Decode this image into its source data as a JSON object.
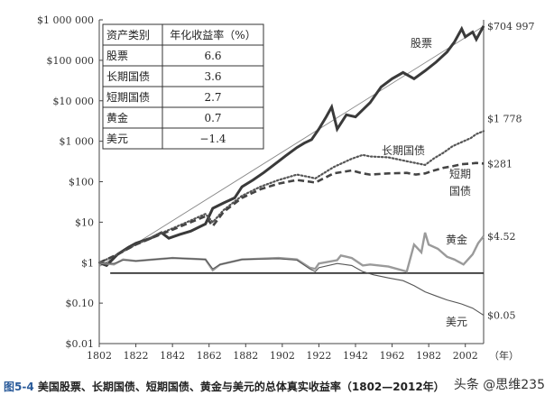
{
  "chart_data": {
    "type": "line",
    "y_scale": "log",
    "ylim": [
      0.01,
      1000000
    ],
    "xlim": [
      1802,
      2012
    ],
    "y_ticks": [
      {
        "v": 1000000,
        "label": "$1 000 000"
      },
      {
        "v": 100000,
        "label": "$100 000"
      },
      {
        "v": 10000,
        "label": "$10 000"
      },
      {
        "v": 1000,
        "label": "$1 000"
      },
      {
        "v": 100,
        "label": "$100"
      },
      {
        "v": 10,
        "label": "$10"
      },
      {
        "v": 1,
        "label": "$1"
      },
      {
        "v": 0.1,
        "label": "$0.10"
      },
      {
        "v": 0.01,
        "label": "$0.01"
      }
    ],
    "x_ticks": [
      1802,
      1822,
      1842,
      1862,
      1882,
      1902,
      1922,
      1942,
      1962,
      1982,
      2002
    ],
    "x_unit": "（年）",
    "grid": false,
    "series": [
      {
        "name": "股票",
        "end_label": "$704 997",
        "style": "thick-solid",
        "points": [
          [
            1802,
            1
          ],
          [
            1806,
            0.85
          ],
          [
            1812,
            1.6
          ],
          [
            1818,
            2.4
          ],
          [
            1822,
            3
          ],
          [
            1830,
            4
          ],
          [
            1836,
            5.5
          ],
          [
            1840,
            4
          ],
          [
            1846,
            5
          ],
          [
            1852,
            6
          ],
          [
            1860,
            9
          ],
          [
            1864,
            22
          ],
          [
            1870,
            30
          ],
          [
            1876,
            40
          ],
          [
            1880,
            75
          ],
          [
            1886,
            110
          ],
          [
            1892,
            170
          ],
          [
            1900,
            320
          ],
          [
            1904,
            440
          ],
          [
            1910,
            700
          ],
          [
            1914,
            900
          ],
          [
            1918,
            1100
          ],
          [
            1922,
            2000
          ],
          [
            1926,
            4000
          ],
          [
            1929,
            7000
          ],
          [
            1932,
            2000
          ],
          [
            1937,
            4500
          ],
          [
            1942,
            4000
          ],
          [
            1950,
            9000
          ],
          [
            1956,
            22000
          ],
          [
            1962,
            35000
          ],
          [
            1968,
            50000
          ],
          [
            1974,
            35000
          ],
          [
            1980,
            55000
          ],
          [
            1986,
            90000
          ],
          [
            1992,
            160000
          ],
          [
            1996,
            280000
          ],
          [
            2000,
            600000
          ],
          [
            2002,
            380000
          ],
          [
            2006,
            500000
          ],
          [
            2008,
            330000
          ],
          [
            2012,
            704997
          ]
        ]
      },
      {
        "name": "长期国债",
        "end_label": "$1 778",
        "style": "dotted",
        "points": [
          [
            1802,
            1
          ],
          [
            1812,
            1.6
          ],
          [
            1822,
            2.8
          ],
          [
            1832,
            4.5
          ],
          [
            1842,
            7
          ],
          [
            1852,
            11
          ],
          [
            1860,
            16
          ],
          [
            1864,
            10
          ],
          [
            1870,
            20
          ],
          [
            1880,
            45
          ],
          [
            1890,
            75
          ],
          [
            1900,
            110
          ],
          [
            1910,
            150
          ],
          [
            1917,
            130
          ],
          [
            1920,
            120
          ],
          [
            1930,
            230
          ],
          [
            1940,
            370
          ],
          [
            1946,
            460
          ],
          [
            1950,
            420
          ],
          [
            1960,
            400
          ],
          [
            1970,
            320
          ],
          [
            1980,
            260
          ],
          [
            1985,
            380
          ],
          [
            1990,
            520
          ],
          [
            1995,
            750
          ],
          [
            2000,
            950
          ],
          [
            2005,
            1200
          ],
          [
            2008,
            1500
          ],
          [
            2012,
            1778
          ]
        ]
      },
      {
        "name": "短期国债",
        "end_label": "$281",
        "style": "dashed",
        "points": [
          [
            1802,
            1
          ],
          [
            1812,
            1.6
          ],
          [
            1822,
            2.8
          ],
          [
            1832,
            4.3
          ],
          [
            1842,
            6.5
          ],
          [
            1852,
            10
          ],
          [
            1860,
            14
          ],
          [
            1864,
            8
          ],
          [
            1870,
            18
          ],
          [
            1880,
            40
          ],
          [
            1890,
            65
          ],
          [
            1900,
            90
          ],
          [
            1910,
            110
          ],
          [
            1917,
            100
          ],
          [
            1920,
            95
          ],
          [
            1930,
            160
          ],
          [
            1940,
            190
          ],
          [
            1946,
            160
          ],
          [
            1950,
            150
          ],
          [
            1960,
            160
          ],
          [
            1970,
            165
          ],
          [
            1975,
            150
          ],
          [
            1980,
            160
          ],
          [
            1985,
            190
          ],
          [
            1990,
            220
          ],
          [
            1995,
            240
          ],
          [
            2000,
            270
          ],
          [
            2005,
            280
          ],
          [
            2008,
            290
          ],
          [
            2012,
            281
          ]
        ]
      },
      {
        "name": "黄金",
        "end_label": "$4.52",
        "style": "gray-solid",
        "points": [
          [
            1802,
            1
          ],
          [
            1810,
            0.9
          ],
          [
            1815,
            1.2
          ],
          [
            1822,
            1.1
          ],
          [
            1832,
            1.2
          ],
          [
            1842,
            1.3
          ],
          [
            1852,
            1.25
          ],
          [
            1860,
            1.2
          ],
          [
            1864,
            0.65
          ],
          [
            1868,
            0.9
          ],
          [
            1880,
            1.2
          ],
          [
            1900,
            1.3
          ],
          [
            1910,
            1.2
          ],
          [
            1917,
            0.75
          ],
          [
            1920,
            0.7
          ],
          [
            1922,
            0.95
          ],
          [
            1932,
            1.15
          ],
          [
            1934,
            1.5
          ],
          [
            1940,
            1.3
          ],
          [
            1946,
            0.85
          ],
          [
            1950,
            0.9
          ],
          [
            1960,
            0.8
          ],
          [
            1970,
            0.6
          ],
          [
            1974,
            2.8
          ],
          [
            1978,
            1.8
          ],
          [
            1980,
            5.5
          ],
          [
            1982,
            2.8
          ],
          [
            1987,
            2.2
          ],
          [
            1992,
            1.4
          ],
          [
            1996,
            1.2
          ],
          [
            2001,
            0.9
          ],
          [
            2006,
            1.6
          ],
          [
            2009,
            3
          ],
          [
            2012,
            4.52
          ]
        ]
      },
      {
        "name": "美元",
        "end_label": "$0.05",
        "style": "thin-solid",
        "points": [
          [
            1802,
            1
          ],
          [
            1810,
            0.95
          ],
          [
            1815,
            1.15
          ],
          [
            1822,
            1.1
          ],
          [
            1832,
            1.2
          ],
          [
            1842,
            1.3
          ],
          [
            1852,
            1.25
          ],
          [
            1860,
            1.2
          ],
          [
            1864,
            0.7
          ],
          [
            1868,
            0.9
          ],
          [
            1880,
            1.2
          ],
          [
            1900,
            1.25
          ],
          [
            1910,
            1.15
          ],
          [
            1917,
            0.7
          ],
          [
            1920,
            0.6
          ],
          [
            1922,
            0.75
          ],
          [
            1932,
            0.95
          ],
          [
            1940,
            0.85
          ],
          [
            1946,
            0.6
          ],
          [
            1952,
            0.5
          ],
          [
            1960,
            0.42
          ],
          [
            1968,
            0.36
          ],
          [
            1974,
            0.27
          ],
          [
            1980,
            0.19
          ],
          [
            1986,
            0.15
          ],
          [
            1992,
            0.12
          ],
          [
            2000,
            0.095
          ],
          [
            2006,
            0.075
          ],
          [
            2012,
            0.05
          ]
        ]
      }
    ],
    "reference_lines": [
      {
        "kind": "trend",
        "from": [
          1802,
          0.8
        ],
        "to": [
          2012,
          700000
        ]
      },
      {
        "kind": "flat",
        "from": [
          1808,
          0.55
        ],
        "to": [
          2012,
          0.55
        ]
      }
    ]
  },
  "table": {
    "headers": [
      "资产类别",
      "年化收益率（%）"
    ],
    "rows": [
      [
        "股票",
        "6.6"
      ],
      [
        "长期国债",
        "3.6"
      ],
      [
        "短期国债",
        "2.7"
      ],
      [
        "黄金",
        "0.7"
      ],
      [
        "美元",
        "−1.4"
      ]
    ]
  },
  "inline_labels": {
    "stocks": "股票",
    "long_bonds": "长期国债",
    "short_bonds_1": "短期",
    "short_bonds_2": "国债",
    "gold": "黄金",
    "dollar": "美元"
  },
  "caption": {
    "prefix": "图5-4",
    "text": "美国股票、长期国债、短期国债、黄金与美元的总体真实收益率（1802—2012年）"
  },
  "watermark": "头条 @思维235"
}
